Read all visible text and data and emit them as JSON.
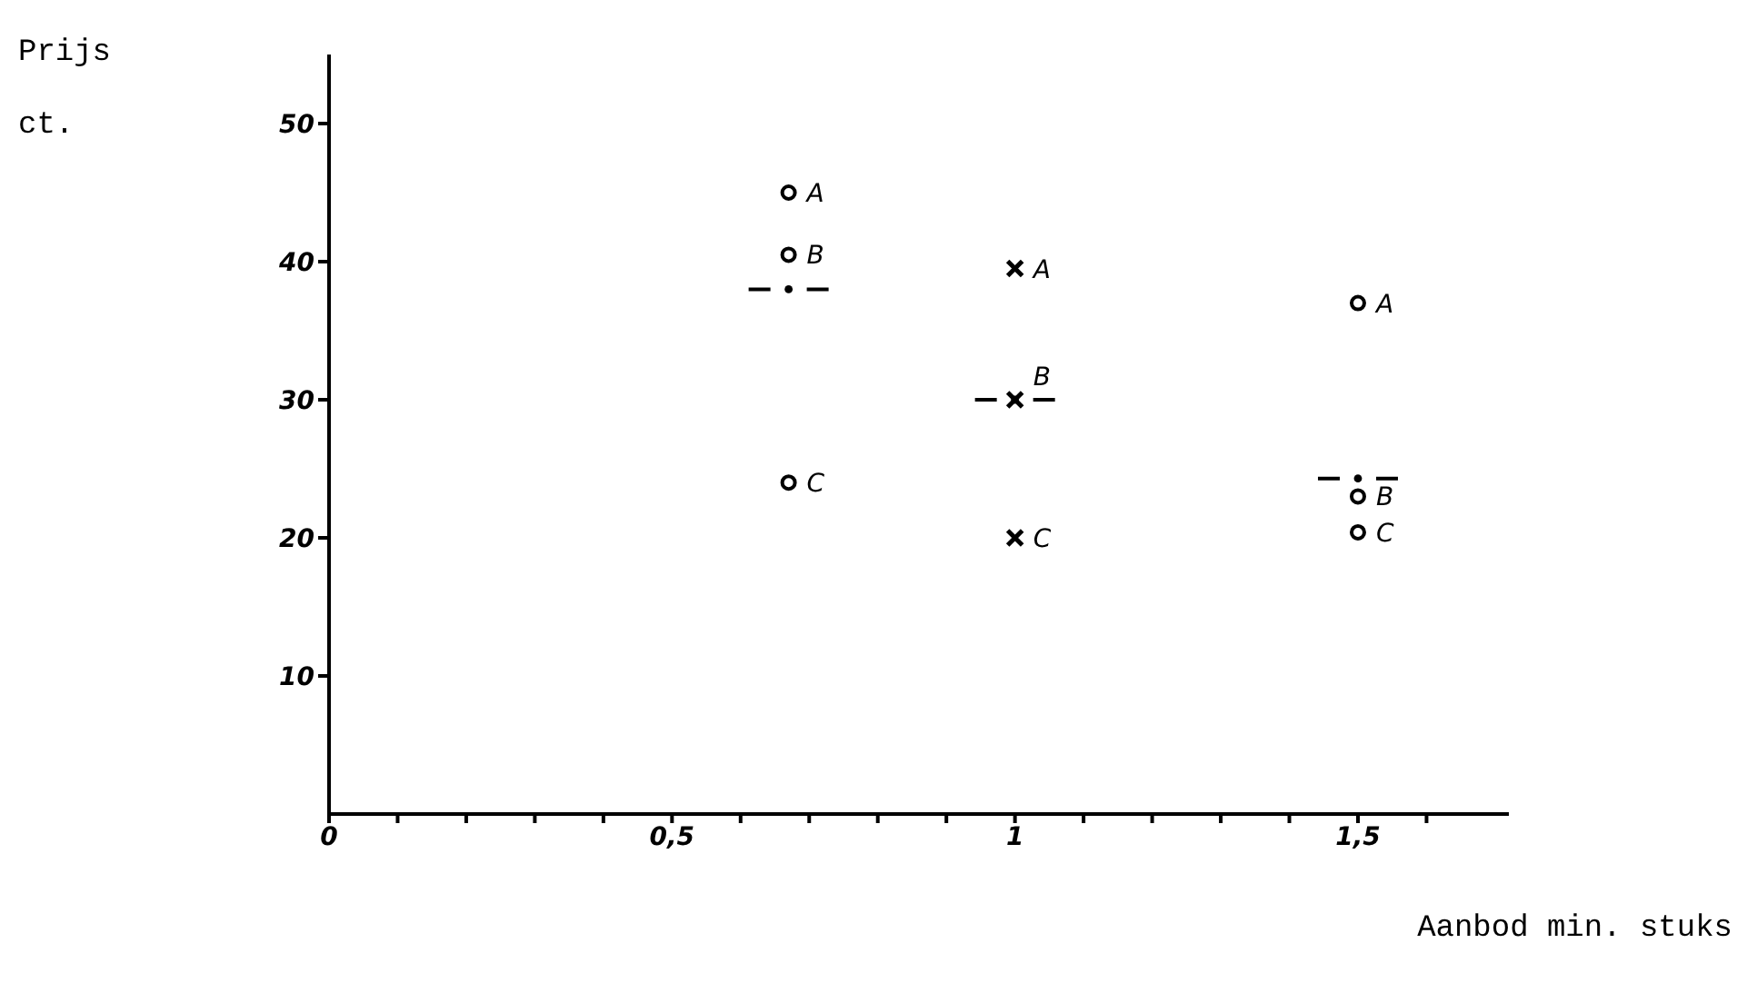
{
  "chart_data": {
    "type": "scatter",
    "xlabel": "Aanbod min. stuks",
    "ylabel": "Prijs\nct.",
    "xlim": [
      0,
      1.72
    ],
    "ylim": [
      0,
      55
    ],
    "xticks": [
      0,
      {
        "value": 0.1,
        "label": null
      },
      {
        "value": 0.2,
        "label": null
      },
      {
        "value": 0.3,
        "label": null
      },
      {
        "value": 0.4,
        "label": null
      },
      {
        "value": 0.5,
        "label": "0,5"
      },
      {
        "value": 0.6,
        "label": null
      },
      {
        "value": 0.7,
        "label": null
      },
      {
        "value": 0.8,
        "label": null
      },
      {
        "value": 0.9,
        "label": null
      },
      1,
      {
        "value": 1.1,
        "label": null
      },
      {
        "value": 1.2,
        "label": null
      },
      {
        "value": 1.3,
        "label": null
      },
      {
        "value": 1.4,
        "label": null
      },
      {
        "value": 1.5,
        "label": "1,5"
      },
      {
        "value": 1.6,
        "label": null
      }
    ],
    "yticks": [
      10,
      20,
      30,
      40,
      50
    ],
    "grid": false,
    "legend": false,
    "series": [
      {
        "color": "#000000",
        "marker": "circle",
        "x": [
          0.67,
          0.67,
          0.67,
          1.5,
          1.5,
          1.5
        ],
        "values": [
          45,
          40.5,
          24,
          37,
          23,
          20.4
        ]
      },
      {
        "color": "#000000",
        "marker": "cross",
        "x": [
          1,
          1,
          1
        ],
        "values": [
          39.5,
          30,
          20
        ]
      },
      {
        "color": "#000000",
        "marker": "circle",
        "x": [
          0.67,
          1,
          1.5
        ],
        "values": [
          38,
          30,
          24.3
        ]
      }
    ],
    "annotations": [
      {
        "text": "A",
        "x": 0.67,
        "y": 45
      },
      {
        "text": "B",
        "x": 0.67,
        "y": 40.5
      },
      {
        "text": "C",
        "x": 0.67,
        "y": 24
      },
      {
        "text": "A",
        "x": 1,
        "y": 39.5
      },
      {
        "text": "B",
        "x": 1,
        "y": 30
      },
      {
        "text": "C",
        "x": 1,
        "y": 20
      },
      {
        "text": "A",
        "x": 1.5,
        "y": 37
      },
      {
        "text": "B",
        "x": 1.5,
        "y": 23
      },
      {
        "text": "C",
        "x": 1.5,
        "y": 20.4
      }
    ]
  }
}
